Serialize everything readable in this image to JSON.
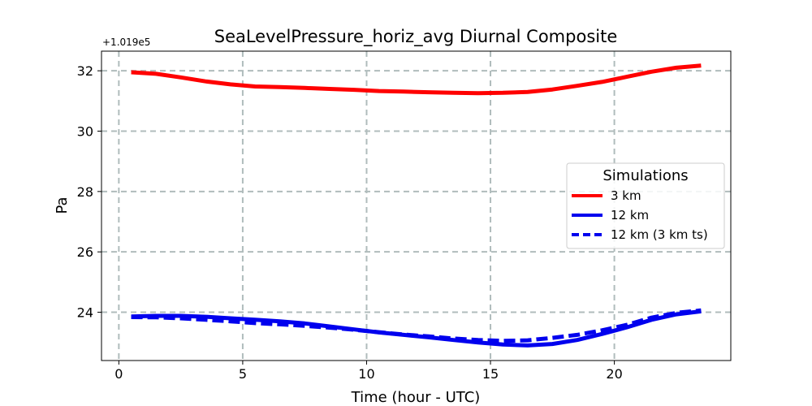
{
  "chart_data": {
    "type": "line",
    "title": "SeaLevelPressure_horiz_avg Diurnal Composite",
    "xlabel": "Time (hour - UTC)",
    "ylabel": "Pa",
    "offset_text": "+1.019e5",
    "xlim": [
      -0.7,
      24.7
    ],
    "ylim": [
      22.4,
      32.65
    ],
    "xticks": [
      0,
      5,
      10,
      15,
      20
    ],
    "xtick_labels": [
      "0",
      "5",
      "10",
      "15",
      "20"
    ],
    "yticks": [
      24,
      26,
      28,
      30,
      32
    ],
    "ytick_labels": [
      "24",
      "26",
      "28",
      "30",
      "32"
    ],
    "grid": true,
    "legend": {
      "title": "Simulations",
      "placement": "center-right"
    },
    "x": [
      0.5,
      1.5,
      2.5,
      3.5,
      4.5,
      5.5,
      6.5,
      7.5,
      8.5,
      9.5,
      10.5,
      11.5,
      12.5,
      13.5,
      14.5,
      15.5,
      16.5,
      17.5,
      18.5,
      19.5,
      20.5,
      21.5,
      22.5,
      23.5
    ],
    "series": [
      {
        "name": "3 km",
        "color": "#ff0000",
        "style": "solid",
        "values": [
          31.95,
          31.9,
          31.78,
          31.65,
          31.55,
          31.48,
          31.46,
          31.43,
          31.4,
          31.37,
          31.33,
          31.31,
          31.29,
          31.27,
          31.26,
          31.27,
          31.3,
          31.38,
          31.5,
          31.63,
          31.8,
          31.97,
          32.1,
          32.17
        ]
      },
      {
        "name": "12 km",
        "color": "#0000ee",
        "style": "solid",
        "values": [
          23.86,
          23.88,
          23.88,
          23.85,
          23.8,
          23.75,
          23.7,
          23.63,
          23.53,
          23.43,
          23.33,
          23.25,
          23.17,
          23.08,
          23.0,
          22.93,
          22.9,
          22.95,
          23.08,
          23.28,
          23.5,
          23.75,
          23.93,
          24.03
        ]
      },
      {
        "name": "12 km (3 km ts)",
        "color": "#0000ee",
        "style": "dashed",
        "values": [
          23.84,
          23.83,
          23.8,
          23.75,
          23.7,
          23.64,
          23.6,
          23.55,
          23.49,
          23.42,
          23.34,
          23.26,
          23.2,
          23.13,
          23.08,
          23.05,
          23.07,
          23.15,
          23.25,
          23.4,
          23.58,
          23.82,
          23.98,
          24.06
        ]
      }
    ]
  }
}
